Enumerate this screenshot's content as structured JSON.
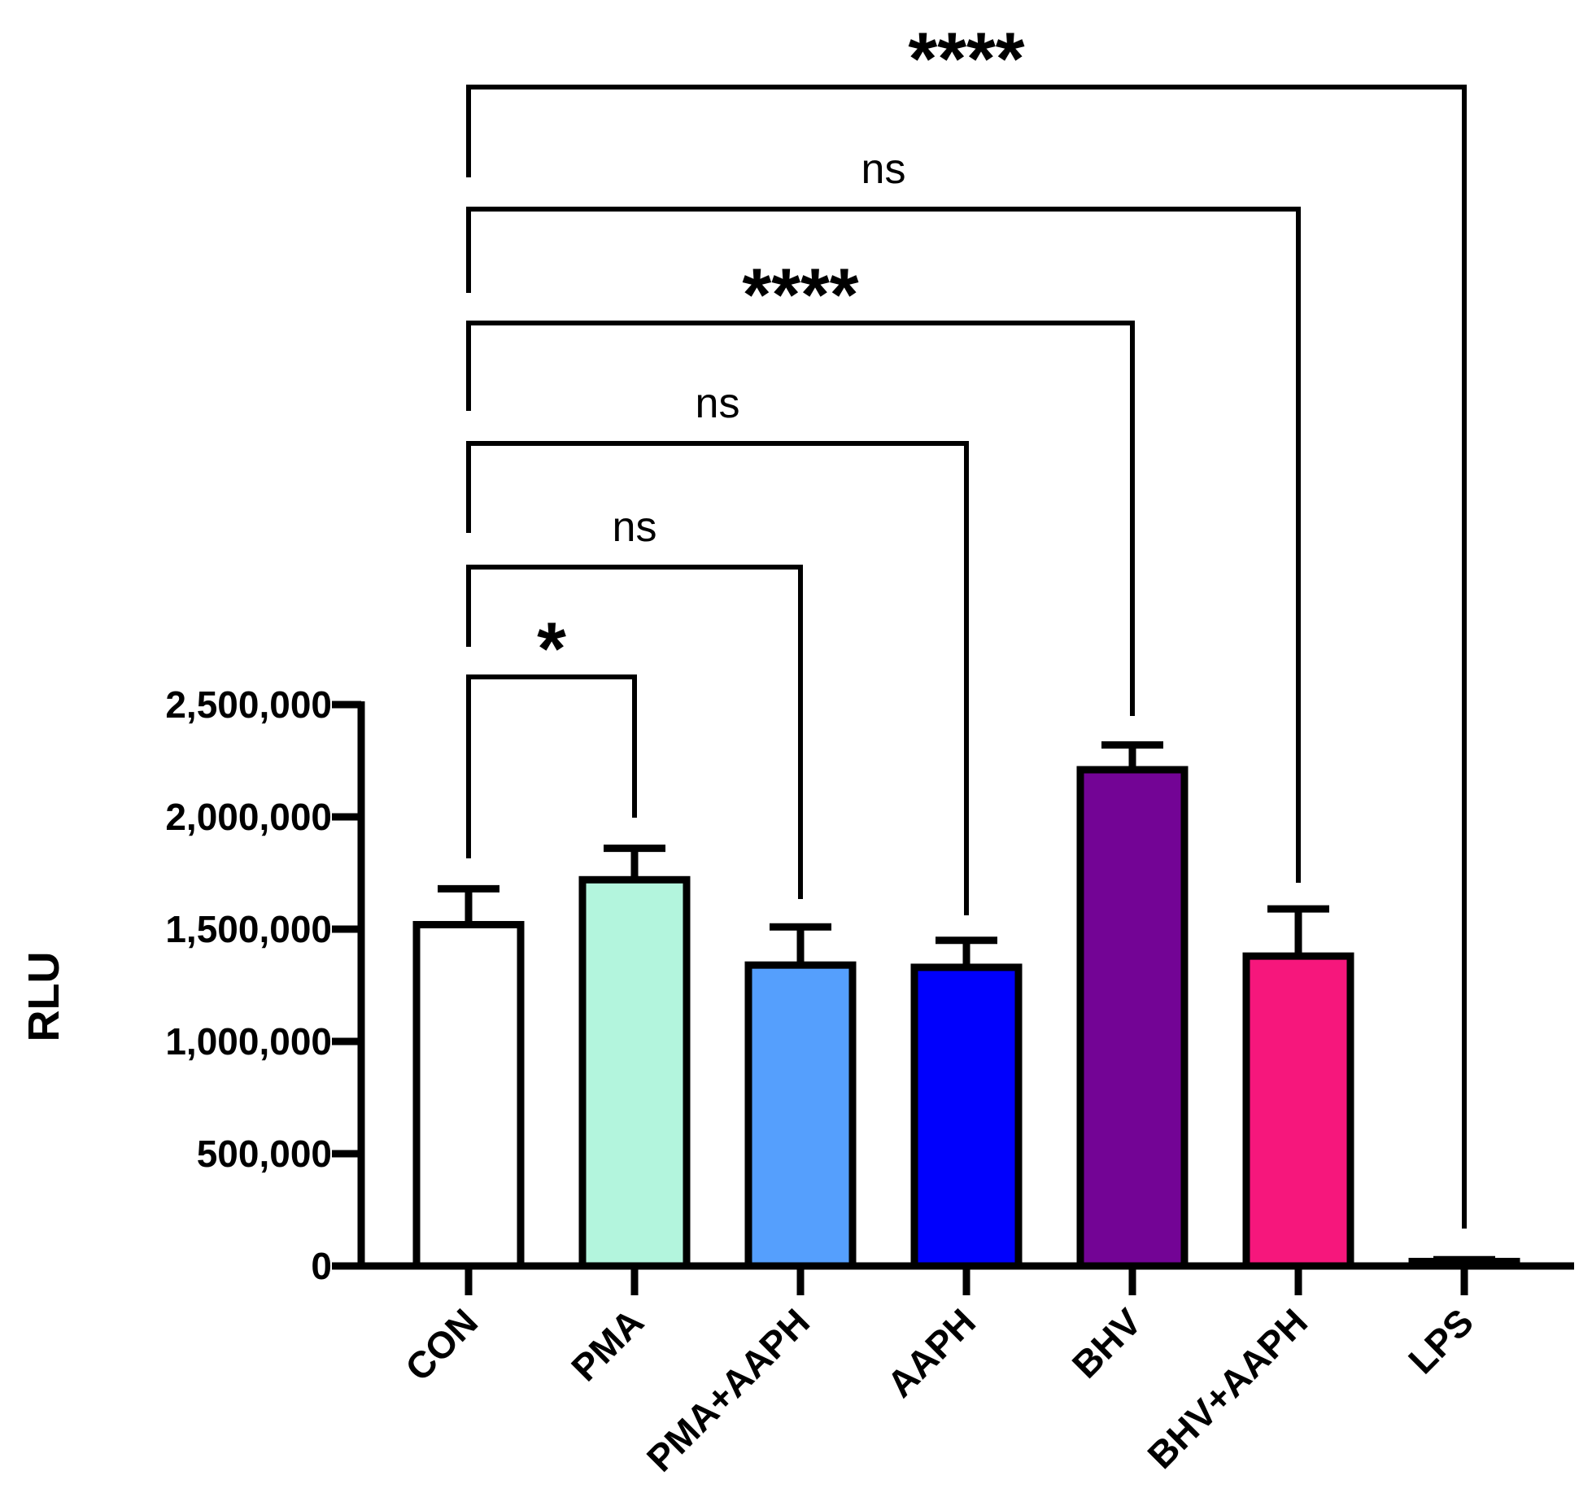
{
  "chart_data": {
    "type": "bar",
    "title": "",
    "xlabel": "",
    "ylabel": "RLU",
    "ylim": [
      0,
      2500000
    ],
    "yticks": [
      0,
      500000,
      1000000,
      1500000,
      2000000,
      2500000
    ],
    "ytick_labels": [
      "0",
      "500,000",
      "1,000,000",
      "1,500,000",
      "2,000,000",
      "2,500,000"
    ],
    "categories": [
      "CON",
      "PMA",
      "PMA+AAPH",
      "AAPH",
      "BHV",
      "BHV+AAPH",
      "LPS"
    ],
    "values": [
      1520000,
      1720000,
      1340000,
      1330000,
      2210000,
      1380000,
      20000
    ],
    "errors": [
      160000,
      140000,
      170000,
      120000,
      110000,
      210000,
      8000
    ],
    "colors": [
      "#ffffff",
      "#b3f5dd",
      "#559ffd",
      "#0000fd",
      "#730495",
      "#f6177c",
      "#ffffff"
    ],
    "grid": false,
    "legend": "none",
    "comparisons": [
      {
        "from": "CON",
        "to": "PMA",
        "label": "*"
      },
      {
        "from": "CON",
        "to": "PMA+AAPH",
        "label": "ns"
      },
      {
        "from": "CON",
        "to": "AAPH",
        "label": "ns"
      },
      {
        "from": "CON",
        "to": "BHV",
        "label": "****"
      },
      {
        "from": "CON",
        "to": "BHV+AAPH",
        "label": "ns"
      },
      {
        "from": "CON",
        "to": "LPS",
        "label": "****"
      }
    ]
  }
}
